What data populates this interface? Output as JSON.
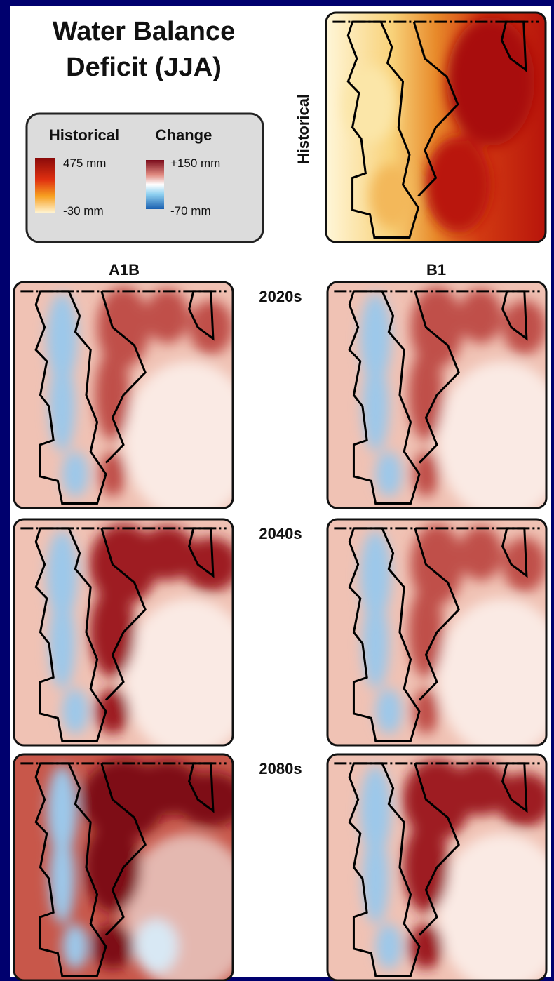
{
  "title_lines": [
    "Water Balance",
    "Deficit (JJA)"
  ],
  "legend": {
    "historical": {
      "label": "Historical",
      "max": "475 mm",
      "min": "-30 mm"
    },
    "change": {
      "label": "Change",
      "max": "+150 mm",
      "min": "-70 mm"
    }
  },
  "panels": {
    "historical": "Historical",
    "columns": [
      "A1B",
      "B1"
    ],
    "rows": [
      "2020s",
      "2040s",
      "2080s"
    ]
  }
}
